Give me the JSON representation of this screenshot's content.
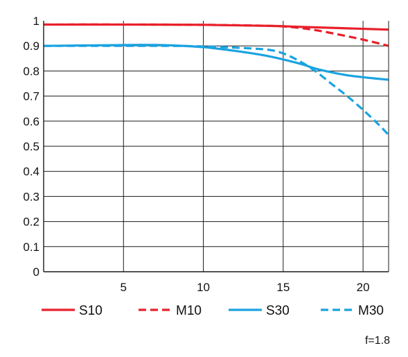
{
  "chart_data": {
    "type": "line",
    "title": "",
    "xlabel": "",
    "ylabel": "",
    "xlim": [
      0,
      21.6
    ],
    "ylim": [
      0,
      1
    ],
    "x_ticks": [
      5,
      10,
      15,
      20
    ],
    "y_ticks": [
      0,
      0.1,
      0.2,
      0.3,
      0.4,
      0.5,
      0.6,
      0.7,
      0.8,
      0.9,
      1
    ],
    "y_tick_labels": [
      "0",
      "0.1",
      "0.2",
      "0.3",
      "0.4",
      "0.5",
      "0.6",
      "0.7",
      "0.8",
      "0.9",
      "1"
    ],
    "grid": true,
    "legend_position": "bottom",
    "annotation": "f=1.8",
    "series": [
      {
        "name": "S10",
        "color": "#e8202a",
        "dash": false,
        "x": [
          0,
          5,
          10,
          14,
          16,
          18,
          20,
          21.6
        ],
        "y": [
          0.985,
          0.985,
          0.984,
          0.98,
          0.976,
          0.972,
          0.968,
          0.965
        ]
      },
      {
        "name": "M10",
        "color": "#e8202a",
        "dash": true,
        "x": [
          0,
          5,
          10,
          14,
          15.5,
          17,
          18.5,
          20,
          21.6
        ],
        "y": [
          0.985,
          0.985,
          0.984,
          0.98,
          0.975,
          0.963,
          0.945,
          0.925,
          0.9
        ]
      },
      {
        "name": "S30",
        "color": "#1aa3e0",
        "dash": false,
        "x": [
          0,
          3,
          6,
          8,
          10,
          12,
          14,
          16,
          17,
          18,
          19,
          20,
          21.6
        ],
        "y": [
          0.9,
          0.902,
          0.904,
          0.902,
          0.895,
          0.88,
          0.86,
          0.83,
          0.81,
          0.795,
          0.783,
          0.775,
          0.765
        ]
      },
      {
        "name": "M30",
        "color": "#1aa3e0",
        "dash": true,
        "x": [
          0,
          3,
          6,
          8,
          10,
          12,
          14,
          15,
          16,
          17,
          18,
          19,
          20,
          21,
          21.6
        ],
        "y": [
          0.9,
          0.9,
          0.9,
          0.9,
          0.898,
          0.893,
          0.885,
          0.87,
          0.84,
          0.8,
          0.75,
          0.7,
          0.645,
          0.585,
          0.545
        ]
      }
    ]
  }
}
